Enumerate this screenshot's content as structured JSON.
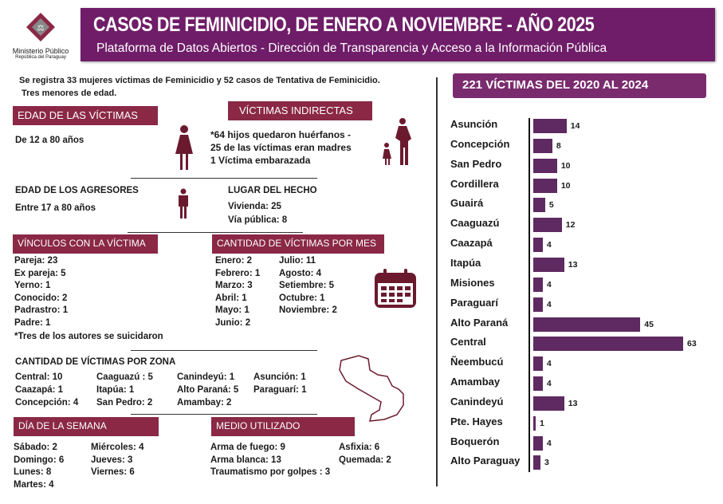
{
  "logo": {
    "name": "Ministerio Público",
    "sub": "República del Paraguay"
  },
  "header": {
    "title": "CASOS DE FEMINICIDIO, DE ENERO A NOVIEMBRE - AÑO 2025",
    "subtitle": "Plataforma de Datos Abiertos  - Dirección de Transparencia y Acceso a la Información Pública"
  },
  "intro": [
    "Se registra 33 mujeres víctimas de Feminicidio y 52 casos de Tentativa de Feminicidio.",
    "Tres menores de edad."
  ],
  "edad_victimas": {
    "title": "EDAD DE LAS VÍCTIMAS",
    "value": "De 12 a 80 años"
  },
  "victimas_indirectas": {
    "title": "VÍCTIMAS INDIRECTAS",
    "lines": [
      "*64 hijos quedaron huérfanos -",
      "25 de las víctimas eran madres",
      "1 Víctima embarazada"
    ]
  },
  "edad_agresores": {
    "title": "EDAD DE LOS AGRESORES",
    "value": "Entre 17 a 80 años"
  },
  "lugar": {
    "title": "LUGAR DEL HECHO",
    "lines": [
      "Vivienda: 25",
      "Vía pública: 8"
    ]
  },
  "vinculos": {
    "title": "VÍNCULOS CON LA VÍCTIMA",
    "lines": [
      "Pareja: 23",
      "Ex pareja: 5",
      "Yerno: 1",
      "Conocido: 2",
      "Padrastro: 1",
      "Padre: 1"
    ],
    "note": "*Tres de los autores se suicidaron"
  },
  "por_mes": {
    "title": "CANTIDAD DE VÍCTIMAS POR MES",
    "col1": [
      "Enero: 2",
      "Febrero: 1",
      "Marzo: 3",
      "Abril: 1",
      "Mayo: 1",
      "Junio: 2"
    ],
    "col2": [
      "Julio: 11",
      "Agosto: 4",
      "Setiembre: 5",
      "Octubre: 1",
      "Noviembre: 2"
    ]
  },
  "por_zona": {
    "title": "CANTIDAD DE VÍCTIMAS POR ZONA",
    "cols": [
      [
        "Central: 10",
        "Caazapá: 1",
        "Concepción: 4"
      ],
      [
        "Caaguazú : 5",
        "Itapúa: 1",
        "San Pedro: 2"
      ],
      [
        "Canindeyú: 1",
        "Alto Paraná: 5",
        "Amambay: 2"
      ],
      [
        "Asunción: 1",
        "Paraguarí: 1"
      ]
    ]
  },
  "dia": {
    "title": "DÍA DE LA SEMANA",
    "col1": [
      "Sábado: 2",
      "Domingo: 6",
      "Lunes: 8",
      "Martes: 4"
    ],
    "col2": [
      "Miércoles: 4",
      "Jueves: 3",
      "Viernes: 6"
    ]
  },
  "medio": {
    "title": "MEDIO UTILIZADO",
    "col1": [
      "Arma de fuego: 9",
      "Arma blanca: 13",
      "Traumatismo  por golpes : 3"
    ],
    "col2": [
      "Asfixia: 6",
      "Quemada: 2"
    ]
  },
  "colors": {
    "header": "#6f1d68",
    "section": "#8a2846",
    "bar": "#5e2a61",
    "icon": "#6b1a2e"
  },
  "chart_data": {
    "type": "bar",
    "orientation": "horizontal",
    "title": "221  VÍCTIMAS DEL 2020 AL 2024",
    "categories": [
      "Asunción",
      "Concepción",
      "San Pedro",
      "Cordillera",
      "Guairá",
      "Caaguazú",
      "Caazapá",
      "Itapúa",
      "Misiones",
      "Paraguarí",
      "Alto Paraná",
      "Central",
      "Ñeembucú",
      "Amambay",
      "Canindeyú",
      "Pte. Hayes",
      "Boquerón",
      "Alto Paraguay"
    ],
    "values": [
      14,
      8,
      10,
      10,
      5,
      12,
      4,
      13,
      4,
      4,
      45,
      63,
      4,
      4,
      13,
      1,
      4,
      3
    ],
    "data_labels": true,
    "grid": false
  }
}
